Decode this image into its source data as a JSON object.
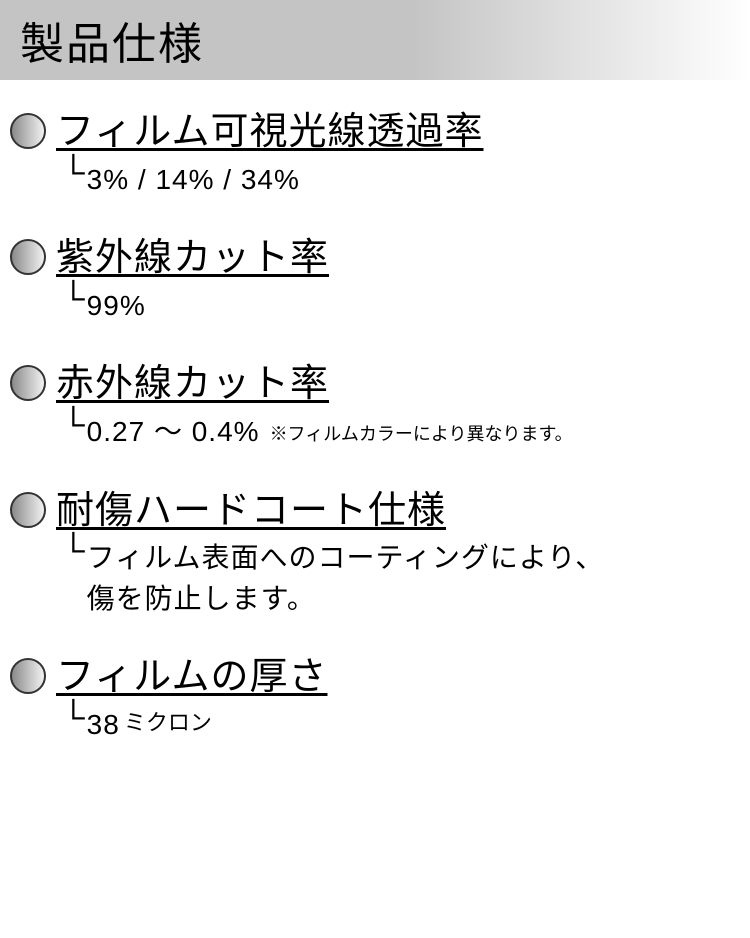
{
  "header": {
    "title": "製品仕様",
    "background_gradient": [
      "#c4c4c4",
      "#ffffff"
    ],
    "title_fontsize": 44
  },
  "bullet_style": {
    "diameter": 36,
    "border_color": "#333333",
    "gradient": [
      "#8a8a8a",
      "#f2f2f2"
    ]
  },
  "specs": [
    {
      "title": "フィルム可視光線透過率",
      "value": "3% / 14% / 34%",
      "note": "",
      "value_suffix": ""
    },
    {
      "title": "紫外線カット率",
      "value": "99%",
      "note": "",
      "value_suffix": ""
    },
    {
      "title": "赤外線カット率",
      "value": "0.27 〜 0.4%",
      "note": "※フィルムカラーにより異なります。",
      "value_suffix": ""
    },
    {
      "title": "耐傷ハードコート仕様",
      "value": "フィルム表面へのコーティングにより、\n傷を防止します。",
      "note": "",
      "value_suffix": ""
    },
    {
      "title": "フィルムの厚さ",
      "value": "38",
      "note": "",
      "value_suffix": "ミクロン"
    }
  ],
  "typography": {
    "title_fontsize": 38,
    "value_fontsize": 28,
    "note_fontsize": 18,
    "suffix_fontsize": 22
  },
  "colors": {
    "text": "#000000",
    "background": "#ffffff"
  }
}
